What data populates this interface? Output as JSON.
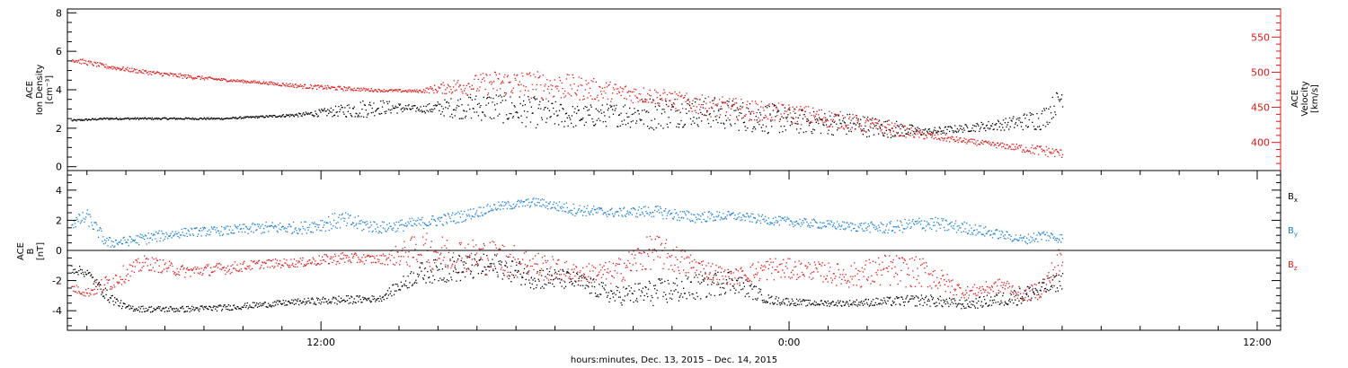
{
  "xlabel": "hours:minutes, Dec. 13, 2015 – Dec. 14, 2015",
  "colors": {
    "black": "#000000",
    "red": "#e01818",
    "blue": "#1a7fd8"
  },
  "chart_data": [
    {
      "type": "scatter",
      "panel": "top",
      "xlim_hours": [
        5.5,
        36.6
      ],
      "xticks": [
        {
          "hour": 12,
          "label": "12:00"
        },
        {
          "hour": 24,
          "label": "0:00"
        },
        {
          "hour": 36,
          "label": "12:00"
        }
      ],
      "ylabel_left": [
        "ACE",
        "Ion Density",
        "[cm⁻³]"
      ],
      "ylim_left": [
        -0.2,
        8.2
      ],
      "yticks_left": [
        "0",
        "2",
        "4",
        "6",
        "8"
      ],
      "ylabel_right": [
        "ACE",
        "Velocity",
        "[km/s]"
      ],
      "ylim_right": [
        360,
        590
      ],
      "yticks_right": [
        "400",
        "450",
        "500",
        "550"
      ],
      "series": [
        {
          "color": "black",
          "axis": "left",
          "x": [
            5.6,
            6.5,
            7.5,
            8.5,
            9.5,
            10.5,
            11.5,
            12.5,
            13.0,
            13.5,
            14.5,
            15.5,
            16.5,
            17.5,
            18.5,
            19.5,
            20.5,
            21.5,
            22.5,
            23.5,
            24.5,
            25.5,
            26.5,
            27.5,
            28.5,
            29.5,
            30.5,
            31.0
          ],
          "y": [
            2.4,
            2.5,
            2.5,
            2.5,
            2.5,
            2.6,
            2.7,
            2.9,
            3.0,
            3.1,
            3.0,
            3.1,
            3.1,
            2.8,
            2.6,
            2.7,
            2.8,
            2.9,
            2.7,
            2.5,
            2.3,
            2.2,
            2.0,
            1.8,
            2.0,
            2.2,
            2.5,
            3.7
          ],
          "spread": [
            0.05,
            0.05,
            0.05,
            0.05,
            0.05,
            0.05,
            0.1,
            0.3,
            0.5,
            0.4,
            0.15,
            0.6,
            0.8,
            0.8,
            0.6,
            0.6,
            0.9,
            0.8,
            0.8,
            0.8,
            0.6,
            0.6,
            0.5,
            0.2,
            0.2,
            0.3,
            0.6,
            0.6
          ]
        },
        {
          "color": "red",
          "axis": "right",
          "x": [
            5.6,
            6.5,
            7.5,
            8.5,
            9.5,
            10.5,
            11.5,
            12.5,
            13.5,
            14.5,
            15.5,
            16.5,
            17.5,
            18.5,
            19.5,
            20.5,
            21.5,
            22.5,
            23.5,
            24.5,
            25.5,
            26.5,
            27.5,
            28.5,
            29.5,
            30.5,
            31.0
          ],
          "y": [
            518,
            508,
            500,
            494,
            489,
            485,
            480,
            477,
            474,
            473,
            480,
            485,
            482,
            478,
            472,
            466,
            455,
            448,
            443,
            438,
            430,
            420,
            410,
            402,
            395,
            388,
            384
          ],
          "spread": [
            4,
            3,
            3,
            3,
            2,
            2,
            3,
            3,
            2,
            2,
            12,
            18,
            20,
            18,
            14,
            12,
            14,
            16,
            14,
            14,
            12,
            10,
            6,
            4,
            4,
            8,
            6
          ]
        }
      ]
    },
    {
      "type": "scatter",
      "panel": "bottom",
      "xlim_hours": [
        5.5,
        36.6
      ],
      "ylabel": [
        "ACE",
        "B",
        "[nT]"
      ],
      "ylim": [
        -5.3,
        5.3
      ],
      "yticks": [
        "-4",
        "-2",
        "0",
        "2",
        "4"
      ],
      "legend": [
        {
          "label": "B",
          "sub": "x",
          "color": "black"
        },
        {
          "label": "B",
          "sub": "y",
          "color": "blue"
        },
        {
          "label": "B",
          "sub": "z",
          "color": "red"
        }
      ],
      "series": [
        {
          "color": "blue",
          "x": [
            5.6,
            6.0,
            6.5,
            7.0,
            7.5,
            8.5,
            9.5,
            10.5,
            11.5,
            12.5,
            13.5,
            14.5,
            15.5,
            16.5,
            17.5,
            18.5,
            19.5,
            20.5,
            21.5,
            22.5,
            23.5,
            24.5,
            25.5,
            26.5,
            27.5,
            28.5,
            29.5,
            30.0,
            30.5,
            31.0
          ],
          "y": [
            1.8,
            2.2,
            0.5,
            0.6,
            0.8,
            1.2,
            1.3,
            1.5,
            1.5,
            2.0,
            1.5,
            1.8,
            2.2,
            2.9,
            3.2,
            2.7,
            2.5,
            2.6,
            2.2,
            2.3,
            2.0,
            1.8,
            1.6,
            1.5,
            1.8,
            1.5,
            1.0,
            0.7,
            1.0,
            0.8
          ],
          "spread": [
            0.4,
            0.5,
            0.4,
            0.3,
            0.4,
            0.3,
            0.3,
            0.4,
            0.4,
            0.6,
            0.4,
            0.4,
            0.4,
            0.3,
            0.3,
            0.4,
            0.3,
            0.4,
            0.4,
            0.3,
            0.3,
            0.3,
            0.3,
            0.4,
            0.5,
            0.4,
            0.3,
            0.3,
            0.4,
            0.3
          ]
        },
        {
          "color": "red",
          "x": [
            5.6,
            6.0,
            6.5,
            7.0,
            7.5,
            8.5,
            9.5,
            10.5,
            11.5,
            12.5,
            13.5,
            14.5,
            15.5,
            16.5,
            17.5,
            18.5,
            19.5,
            20.5,
            21.5,
            22.5,
            23.5,
            24.5,
            25.5,
            26.5,
            27.5,
            28.5,
            29.5,
            30.0,
            30.5,
            31.0
          ],
          "y": [
            -2.5,
            -2.8,
            -2.2,
            -1.5,
            -0.8,
            -1.4,
            -1.2,
            -0.9,
            -0.8,
            -0.5,
            -0.6,
            0.0,
            -0.3,
            -0.5,
            -1.0,
            -1.5,
            -1.5,
            0.0,
            -1.0,
            -1.8,
            -1.2,
            -1.3,
            -1.7,
            -1.3,
            -1.5,
            -2.8,
            -2.3,
            -3.0,
            -2.5,
            -0.5
          ],
          "spread": [
            0.3,
            0.3,
            0.6,
            0.6,
            0.5,
            0.4,
            0.4,
            0.3,
            0.3,
            0.4,
            0.3,
            1.2,
            1.2,
            1.2,
            1.0,
            0.6,
            0.8,
            1.2,
            0.8,
            0.5,
            0.8,
            0.6,
            0.8,
            1.1,
            1.0,
            0.4,
            0.5,
            0.4,
            0.7,
            1.2
          ]
        },
        {
          "color": "black",
          "x": [
            5.6,
            6.0,
            6.5,
            7.0,
            7.5,
            8.5,
            9.5,
            10.5,
            11.5,
            12.5,
            13.5,
            14.5,
            15.5,
            16.5,
            17.5,
            18.5,
            19.5,
            20.5,
            21.5,
            22.5,
            23.5,
            24.5,
            25.5,
            26.5,
            27.5,
            28.5,
            29.5,
            30.0,
            30.5,
            31.0
          ],
          "y": [
            -1.2,
            -1.5,
            -3.0,
            -3.8,
            -3.9,
            -3.9,
            -3.8,
            -3.6,
            -3.4,
            -3.3,
            -3.2,
            -1.5,
            -1.2,
            -1.0,
            -1.8,
            -2.0,
            -3.0,
            -2.8,
            -2.5,
            -2.0,
            -3.3,
            -3.5,
            -3.5,
            -3.4,
            -3.3,
            -3.6,
            -3.2,
            -3.0,
            -2.5,
            -2.0
          ],
          "spread": [
            0.3,
            0.3,
            0.4,
            0.2,
            0.2,
            0.2,
            0.2,
            0.2,
            0.2,
            0.3,
            0.2,
            0.7,
            0.9,
            0.8,
            0.8,
            0.6,
            0.6,
            0.9,
            0.9,
            0.8,
            0.3,
            0.2,
            0.2,
            0.3,
            0.4,
            0.3,
            0.5,
            0.6,
            0.6,
            0.6
          ]
        }
      ]
    }
  ]
}
